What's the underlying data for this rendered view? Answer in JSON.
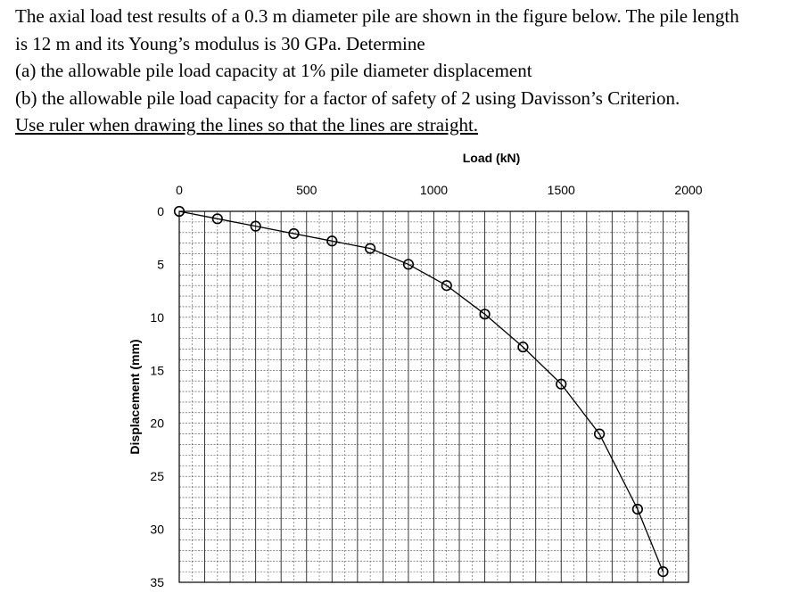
{
  "problem": {
    "lines": [
      "The axial load test results of a 0.3 m diameter pile are shown in the figure below. The pile length",
      "is 12 m and its Young’s modulus is 30 GPa. Determine",
      "(a) the allowable pile load capacity at 1% pile diameter displacement",
      "(b) the allowable pile load capacity for a factor of safety of 2 using Davisson’s Criterion."
    ],
    "instruction": "Use ruler when drawing the lines so that the lines are straight."
  },
  "chart_data": {
    "type": "line",
    "xlabel": "Load (kN)",
    "ylabel": "Displacement (mm)",
    "xlim": [
      0,
      2000
    ],
    "ylim": [
      0,
      35
    ],
    "y_inverted": true,
    "x_axis_position": "top",
    "grid": true,
    "x_ticks": [
      "0",
      "500",
      "1000",
      "1500",
      "2000"
    ],
    "y_ticks": [
      "0",
      "5",
      "10",
      "15",
      "20",
      "25",
      "30",
      "35"
    ],
    "marker": "circle-open",
    "series": [
      {
        "x": [
          0,
          150,
          300,
          450,
          600,
          750,
          900,
          1050,
          1200,
          1350,
          1500,
          1650,
          1800,
          1900
        ],
        "y": [
          0,
          0.7,
          1.4,
          2.1,
          2.8,
          3.5,
          5.0,
          7.0,
          9.7,
          12.8,
          16.3,
          21.0,
          28.1,
          34.0
        ]
      }
    ]
  }
}
